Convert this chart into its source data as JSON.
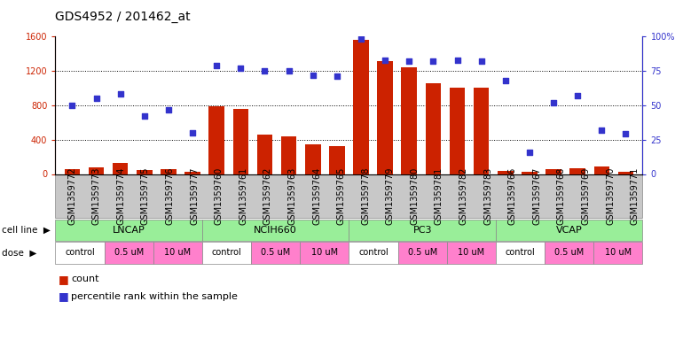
{
  "title": "GDS4952 / 201462_at",
  "samples": [
    "GSM1359772",
    "GSM1359773",
    "GSM1359774",
    "GSM1359775",
    "GSM1359776",
    "GSM1359777",
    "GSM1359760",
    "GSM1359761",
    "GSM1359762",
    "GSM1359763",
    "GSM1359764",
    "GSM1359765",
    "GSM1359778",
    "GSM1359779",
    "GSM1359780",
    "GSM1359781",
    "GSM1359782",
    "GSM1359783",
    "GSM1359766",
    "GSM1359767",
    "GSM1359768",
    "GSM1359769",
    "GSM1359770",
    "GSM1359771"
  ],
  "counts": [
    55,
    75,
    130,
    45,
    60,
    30,
    790,
    755,
    460,
    435,
    345,
    320,
    1560,
    1310,
    1240,
    1060,
    1000,
    1000,
    40,
    30,
    60,
    70,
    90,
    30
  ],
  "percentiles": [
    50,
    55,
    58,
    42,
    47,
    30,
    79,
    77,
    75,
    75,
    72,
    71,
    98,
    83,
    82,
    82,
    83,
    82,
    68,
    16,
    52,
    57,
    32,
    29
  ],
  "cell_lines": [
    {
      "name": "LNCAP",
      "start": 0,
      "end": 6
    },
    {
      "name": "NCIH660",
      "start": 6,
      "end": 12
    },
    {
      "name": "PC3",
      "start": 12,
      "end": 18
    },
    {
      "name": "VCAP",
      "start": 18,
      "end": 24
    }
  ],
  "dose_groups": [
    {
      "name": "control",
      "start": 0,
      "end": 2,
      "color": "#ffffff"
    },
    {
      "name": "0.5 uM",
      "start": 2,
      "end": 4,
      "color": "#ff80cc"
    },
    {
      "name": "10 uM",
      "start": 4,
      "end": 6,
      "color": "#ff80cc"
    },
    {
      "name": "control",
      "start": 6,
      "end": 8,
      "color": "#ffffff"
    },
    {
      "name": "0.5 uM",
      "start": 8,
      "end": 10,
      "color": "#ff80cc"
    },
    {
      "name": "10 uM",
      "start": 10,
      "end": 12,
      "color": "#ff80cc"
    },
    {
      "name": "control",
      "start": 12,
      "end": 14,
      "color": "#ffffff"
    },
    {
      "name": "0.5 uM",
      "start": 14,
      "end": 16,
      "color": "#ff80cc"
    },
    {
      "name": "10 uM",
      "start": 16,
      "end": 18,
      "color": "#ff80cc"
    },
    {
      "name": "control",
      "start": 18,
      "end": 20,
      "color": "#ffffff"
    },
    {
      "name": "0.5 uM",
      "start": 20,
      "end": 22,
      "color": "#ff80cc"
    },
    {
      "name": "10 uM",
      "start": 22,
      "end": 24,
      "color": "#ff80cc"
    }
  ],
  "ylim_left": [
    0,
    1600
  ],
  "ylim_right": [
    0,
    100
  ],
  "yticks_left": [
    0,
    400,
    800,
    1200,
    1600
  ],
  "yticks_right": [
    0,
    25,
    50,
    75,
    100
  ],
  "bar_color": "#cc2200",
  "dot_color": "#3333cc",
  "cell_line_color": "#99ee99",
  "gray_bg": "#c8c8c8",
  "title_fontsize": 10,
  "tick_fontsize": 7,
  "label_fontsize": 7.5
}
